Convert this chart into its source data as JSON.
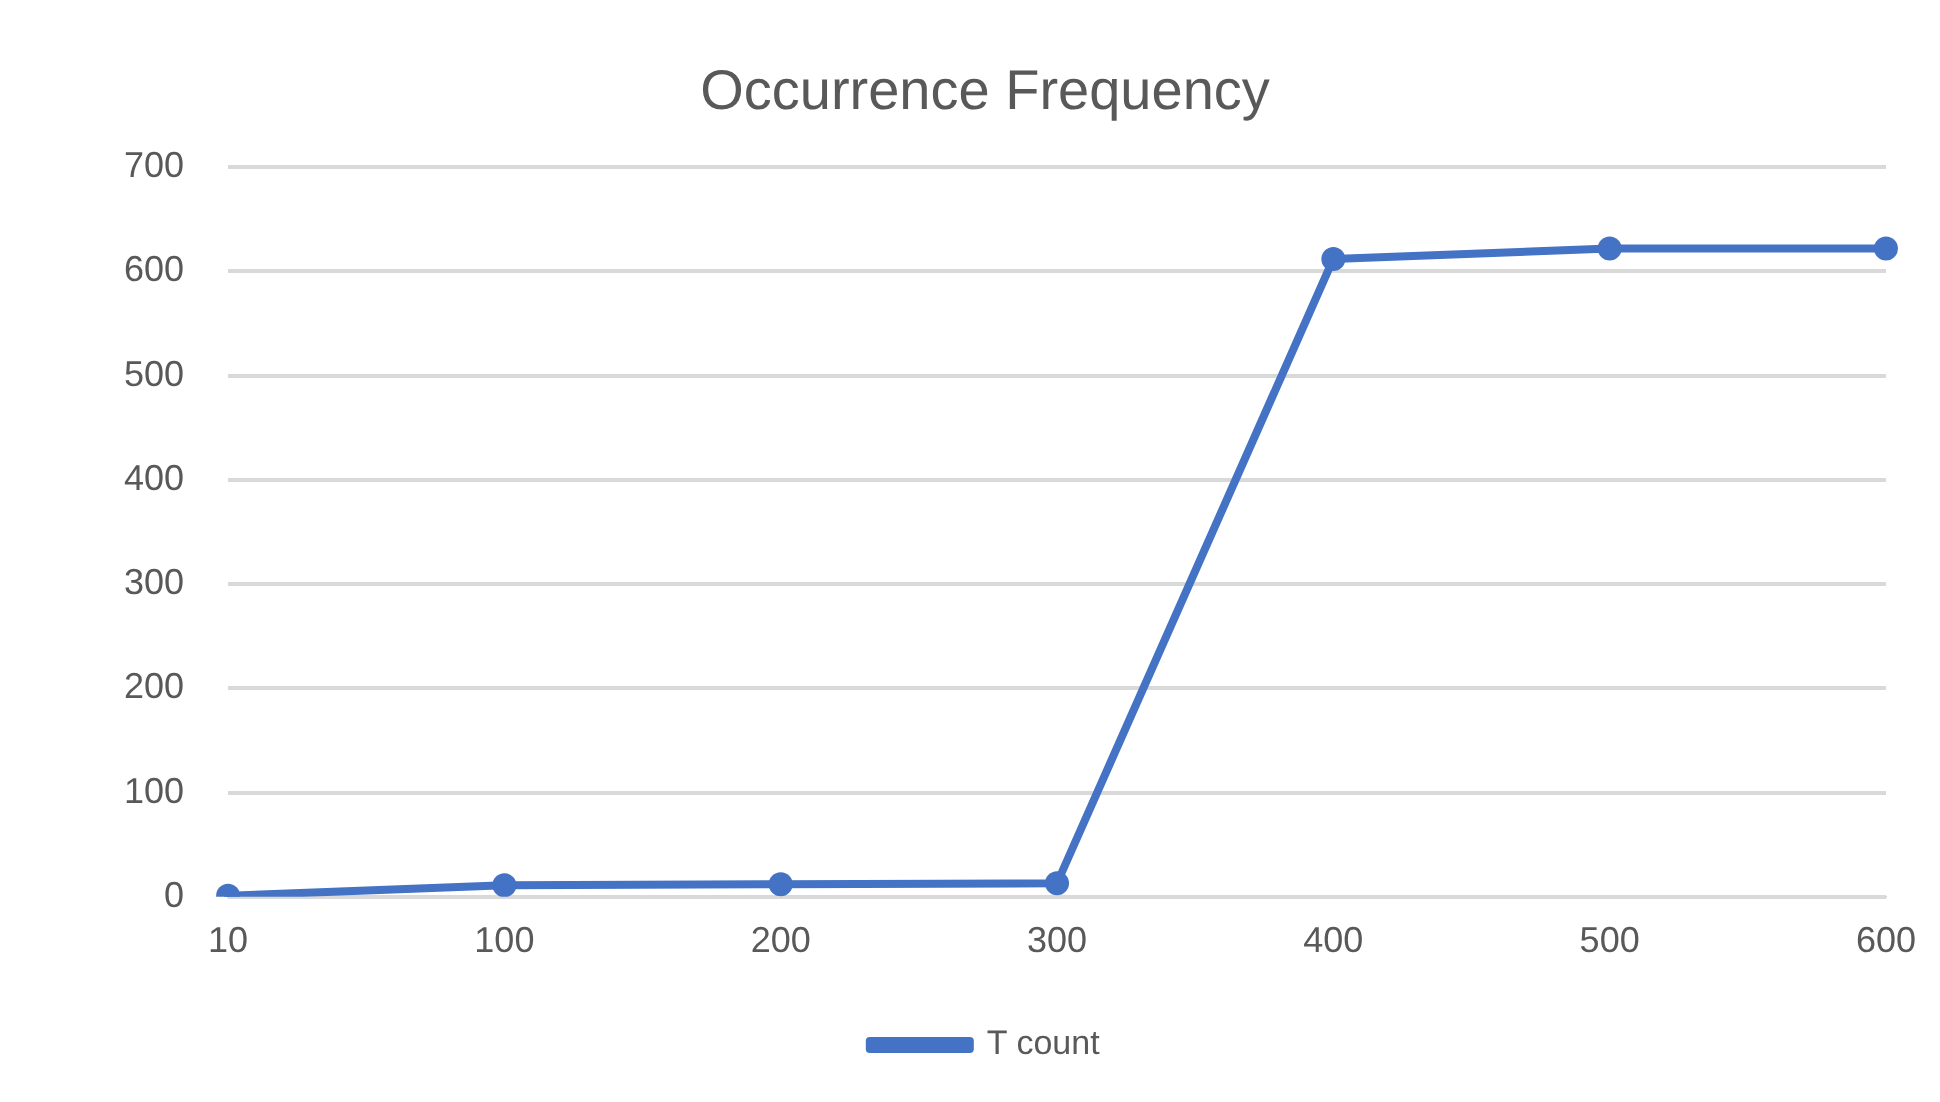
{
  "chart_data": {
    "type": "line",
    "title": "Occurrence Frequency",
    "categories": [
      "10",
      "100",
      "200",
      "300",
      "400",
      "500",
      "600"
    ],
    "series": [
      {
        "name": "T count",
        "color": "#4472c4",
        "values": [
          1,
          11,
          12,
          13,
          612,
          622,
          622
        ]
      }
    ],
    "ylim": [
      0,
      700
    ],
    "yticks": [
      0,
      100,
      200,
      300,
      400,
      500,
      600,
      700
    ],
    "grid": "y",
    "legend": "bottom",
    "marker": "circle",
    "line_style": "solid"
  }
}
